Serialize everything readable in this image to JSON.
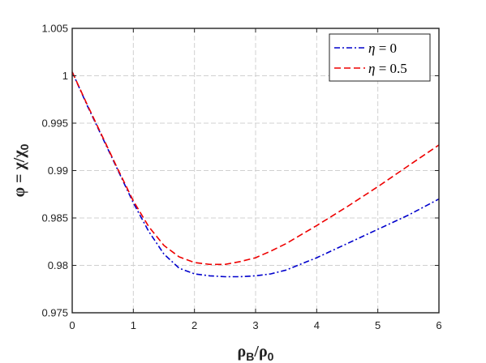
{
  "chart_data": {
    "type": "line",
    "xlabel_parts": [
      {
        "text": "ρ",
        "role": "base"
      },
      {
        "text": "B",
        "role": "sub"
      },
      {
        "text": "/",
        "role": "base"
      },
      {
        "text": "ρ",
        "role": "base"
      },
      {
        "text": "0",
        "role": "sub"
      }
    ],
    "ylabel_parts": [
      {
        "text": "φ",
        "role": "base"
      },
      {
        "text": " =  ",
        "role": "base"
      },
      {
        "text": "χ",
        "role": "base"
      },
      {
        "text": "/",
        "role": "base"
      },
      {
        "text": "χ",
        "role": "base"
      },
      {
        "text": "0",
        "role": "sub"
      }
    ],
    "xlim": [
      0,
      6
    ],
    "ylim": [
      0.975,
      1.005
    ],
    "xticks": [
      0,
      1,
      2,
      3,
      4,
      5,
      6
    ],
    "yticks": [
      0.975,
      0.98,
      0.985,
      0.99,
      0.995,
      1,
      1.005
    ],
    "ytick_labels": [
      "0.975",
      "0.98",
      "0.985",
      "0.99",
      "0.995",
      "1",
      "1.005"
    ],
    "grid": true,
    "legend_position": "top-right",
    "series": [
      {
        "name": "η = 0",
        "color": "#0000cc",
        "style": "dash-dot",
        "x": [
          0,
          0.25,
          0.5,
          0.75,
          1.0,
          1.25,
          1.5,
          1.75,
          2.0,
          2.25,
          2.5,
          2.75,
          3.0,
          3.25,
          3.5,
          4.0,
          4.5,
          5.0,
          5.5,
          6.0
        ],
        "y": [
          1.0004,
          0.9968,
          0.9934,
          0.99,
          0.9866,
          0.9836,
          0.9812,
          0.9797,
          0.9791,
          0.9789,
          0.9788,
          0.9788,
          0.9789,
          0.9791,
          0.9795,
          0.9808,
          0.9823,
          0.9838,
          0.9853,
          0.987
        ]
      },
      {
        "name": "η = 0.5",
        "color": "#ee0000",
        "style": "dashed",
        "x": [
          0,
          0.25,
          0.5,
          0.75,
          1.0,
          1.25,
          1.5,
          1.75,
          2.0,
          2.25,
          2.5,
          2.75,
          3.0,
          3.25,
          3.5,
          4.0,
          4.5,
          5.0,
          5.5,
          6.0
        ],
        "y": [
          1.0004,
          0.9969,
          0.9935,
          0.9901,
          0.9868,
          0.9841,
          0.9821,
          0.9809,
          0.9803,
          0.9801,
          0.9801,
          0.9804,
          0.9808,
          0.9815,
          0.9823,
          0.9842,
          0.9862,
          0.9883,
          0.9905,
          0.9927
        ]
      }
    ]
  }
}
